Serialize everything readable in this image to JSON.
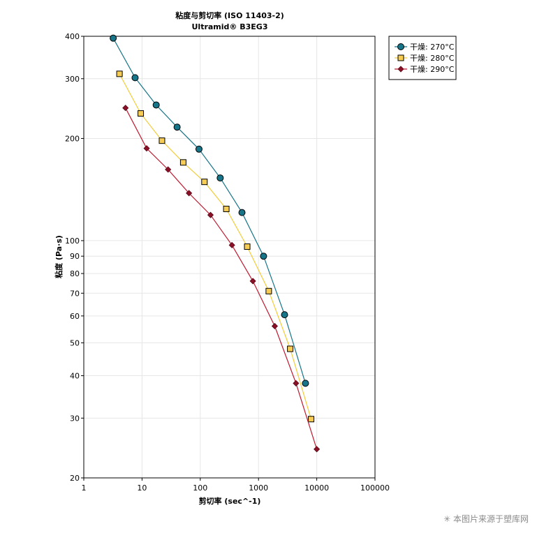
{
  "chart_data": {
    "type": "line",
    "title": "粘度与剪切率 (ISO 11403-2)",
    "subtitle": "Ultramid® B3EG3",
    "xlabel": "剪切率 (sec^-1)",
    "ylabel": "粘度 (Pa·s)",
    "xscale": "log",
    "yscale": "log",
    "xlim": [
      1,
      100000
    ],
    "ylim": [
      20,
      400
    ],
    "x_ticks": [
      1,
      10,
      100,
      1000,
      10000,
      100000
    ],
    "x_tick_labels": [
      "1",
      "10",
      "100",
      "1000",
      "10000",
      "100000"
    ],
    "y_ticks": [
      20,
      30,
      40,
      50,
      60,
      70,
      80,
      90,
      100,
      200,
      300,
      400
    ],
    "y_tick_labels": [
      "20",
      "30",
      "40",
      "50",
      "60",
      "70",
      "80",
      "90",
      "100",
      "200",
      "300",
      "400"
    ],
    "grid": true,
    "legend_position": "top-right outside",
    "series": [
      {
        "name": "干燥: 270°C",
        "marker": "circle",
        "line_color": "#167588",
        "marker_fill": "#167588",
        "x": [
          3.2,
          7.6,
          17.5,
          40,
          95,
          220,
          520,
          1220,
          2800,
          6400
        ],
        "y": [
          395,
          302,
          251,
          216,
          186,
          153,
          121,
          90,
          60.5,
          38
        ]
      },
      {
        "name": "干燥: 280°C",
        "marker": "square",
        "line_color": "#f2cc3a",
        "marker_fill": "#f6cc55",
        "x": [
          4.1,
          9.5,
          22,
          51,
          118,
          280,
          640,
          1500,
          3500,
          8000
        ],
        "y": [
          310,
          237,
          197,
          170,
          149,
          124,
          96,
          71,
          48,
          29.8
        ]
      },
      {
        "name": "干燥: 290°C",
        "marker": "diamond",
        "line_color": "#c0182f",
        "marker_fill": "#8a1027",
        "x": [
          5.2,
          12,
          28,
          64,
          150,
          350,
          800,
          1900,
          4400,
          10000
        ],
        "y": [
          246,
          187,
          162,
          138,
          119,
          97,
          76,
          56,
          38,
          24.3
        ]
      }
    ]
  },
  "watermark": {
    "icon": "asterisk-icon",
    "text": "本图片来源于塑库网"
  }
}
